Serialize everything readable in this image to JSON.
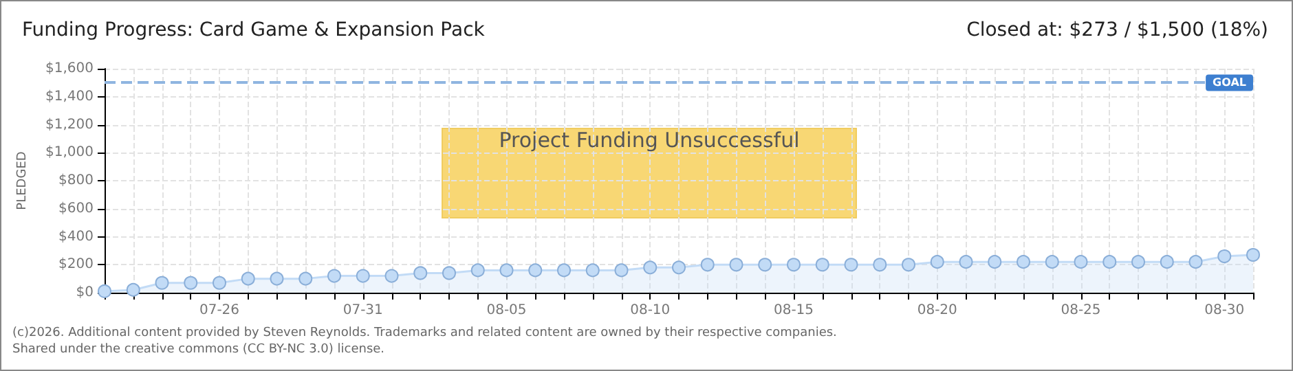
{
  "chart_data": {
    "type": "area",
    "title": "Funding Progress: Card Game & Expansion Pack",
    "subtitle": "Closed at: $273 / $1,500 (18%)",
    "ylabel": "PLEDGED",
    "annotations": [
      "Project Funding Unsuccessful",
      "(c)2026. Additional content provided by Steven Reynolds. Trademarks and related content are owned by their respective companies.",
      "Shared under the creative commons (CC BY-NC 3.0) license."
    ],
    "categories": [
      null,
      null,
      null,
      null,
      "07-26",
      null,
      null,
      null,
      null,
      "07-31",
      null,
      null,
      null,
      null,
      "08-05",
      null,
      null,
      null,
      null,
      "08-10",
      null,
      null,
      null,
      null,
      "08-15",
      null,
      null,
      null,
      null,
      "08-20",
      null,
      null,
      null,
      null,
      "08-25",
      null,
      null,
      null,
      null,
      "08-30",
      null
    ],
    "series": [
      {
        "color": "#c2dbf6",
        "values": [
          10,
          20,
          70,
          70,
          70,
          100,
          100,
          100,
          120,
          120,
          120,
          140,
          140,
          160,
          160,
          160,
          160,
          160,
          160,
          180,
          180,
          200,
          200,
          200,
          200,
          200,
          200,
          200,
          200,
          220,
          220,
          220,
          220,
          220,
          220,
          220,
          220,
          220,
          220,
          260,
          270
        ]
      }
    ],
    "ylim": [
      0,
      1600
    ],
    "yticks": [
      {
        "value": 0,
        "label": "$0"
      },
      {
        "value": 200,
        "label": "$200"
      },
      {
        "value": 400,
        "label": "$400"
      },
      {
        "value": 600,
        "label": "$600"
      },
      {
        "value": 800,
        "label": "$800"
      },
      {
        "value": 1000,
        "label": "$1,000"
      },
      {
        "value": 1200,
        "label": "$1,200"
      },
      {
        "value": 1400,
        "label": "$1,400"
      },
      {
        "value": 1600,
        "label": "$1,600"
      }
    ],
    "ref_lines": [
      {
        "axis": "y",
        "value": 1500,
        "label": "GOAL",
        "color": "#8fb5e0",
        "line_style": "dashed"
      }
    ],
    "grid": true,
    "marker": "circle"
  }
}
